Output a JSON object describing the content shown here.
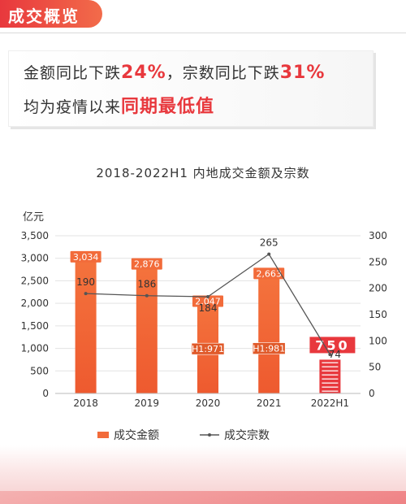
{
  "header": {
    "title": "成交概览"
  },
  "banner": {
    "line1_a": "金额同比下跌",
    "line1_pct_a": "24%",
    "line1_b": "，宗数同比下跌",
    "line1_pct_b": "31%",
    "line2_a": "均为疫情以来",
    "line2_b": "同期最低值"
  },
  "colors": {
    "accent": "#e8383d",
    "bar": "#f26b3a",
    "line": "#555555"
  },
  "chart_data": {
    "type": "bar",
    "title": "2018-2022H1 内地成交金额及宗数",
    "ylabel": "亿元",
    "categories": [
      "2018",
      "2019",
      "2020",
      "2021",
      "2022H1"
    ],
    "ylim": [
      0,
      3500
    ],
    "yticks": [
      0,
      500,
      1000,
      1500,
      2000,
      2500,
      3000,
      3500
    ],
    "y2lim": [
      0,
      300
    ],
    "y2ticks": [
      0,
      50,
      100,
      150,
      200,
      250,
      300
    ],
    "series": [
      {
        "name": "成交金额",
        "type": "bar",
        "axis": "left",
        "values": [
          3034,
          2876,
          2047,
          2663,
          750
        ],
        "labels": [
          "3,034",
          "2,876",
          "2,047",
          "2,663",
          "750"
        ],
        "h1_values": [
          null,
          null,
          971,
          981,
          null
        ],
        "h1_labels": [
          "",
          "",
          "H1:971",
          "H1:981",
          ""
        ]
      },
      {
        "name": "成交宗数",
        "type": "line",
        "axis": "right",
        "values": [
          190,
          186,
          184,
          265,
          74
        ],
        "labels": [
          "190",
          "186",
          "184",
          "265",
          "74"
        ]
      }
    ],
    "legend": "bottom"
  }
}
